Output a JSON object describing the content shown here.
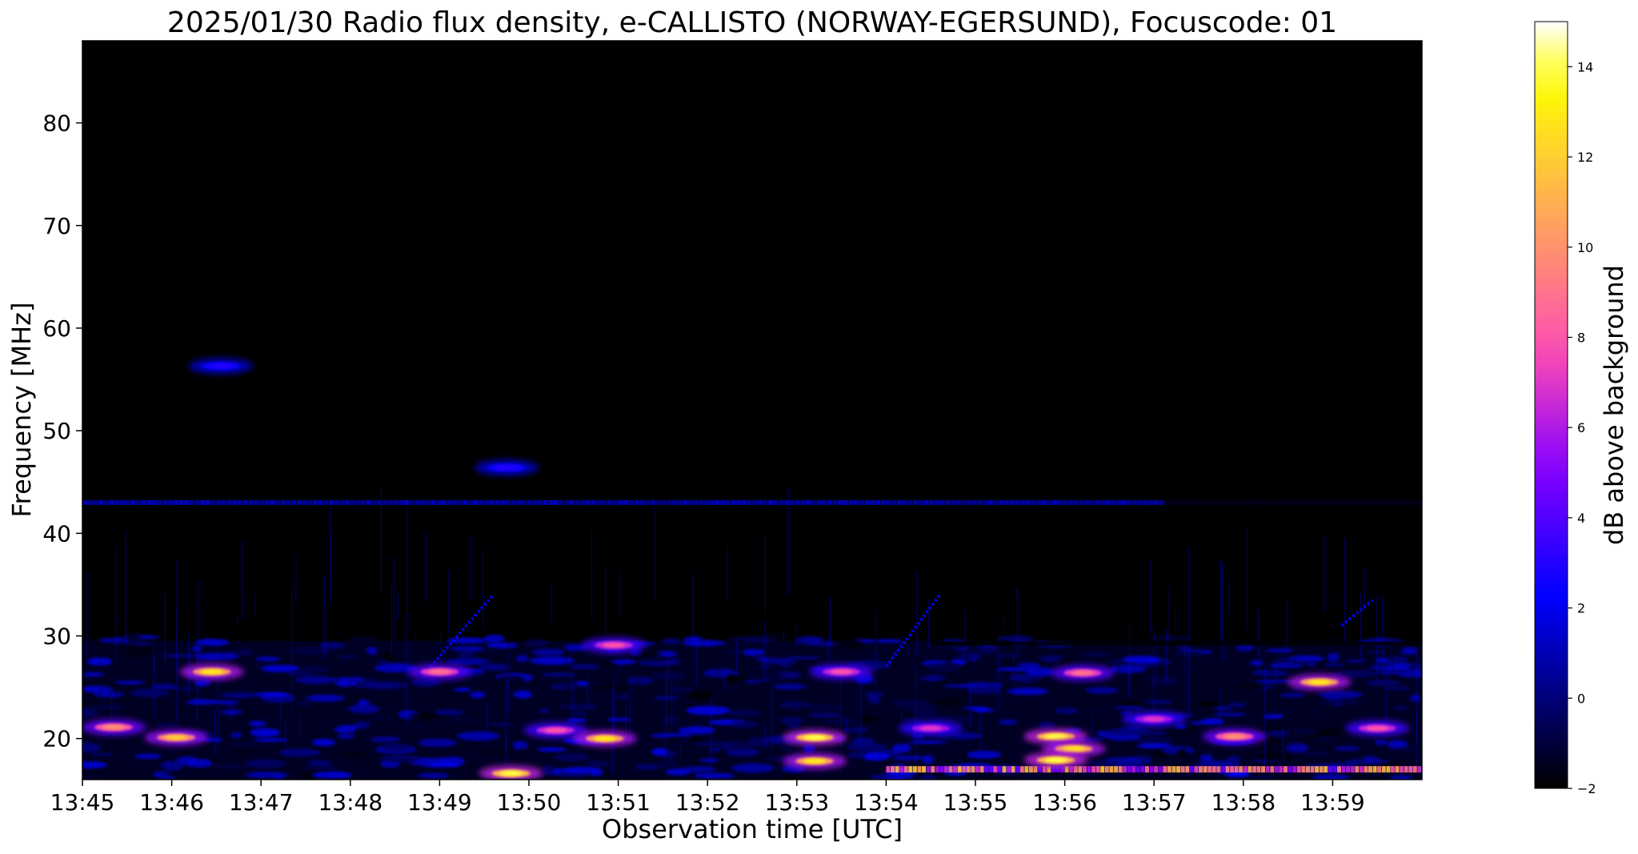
{
  "chart_data": {
    "type": "heatmap",
    "title": "2025/01/30  Radio flux density, e-CALLISTO (NORWAY-EGERSUND), Focuscode: 01",
    "xlabel": "Observation time [UTC]",
    "ylabel": "Frequency [MHz]",
    "colorbar_label": "dB above background",
    "x_ticks": [
      "13:45",
      "13:46",
      "13:47",
      "13:48",
      "13:49",
      "13:50",
      "13:51",
      "13:52",
      "13:53",
      "13:54",
      "13:55",
      "13:56",
      "13:57",
      "13:58",
      "13:59"
    ],
    "x_range_minutes": [
      0,
      15
    ],
    "y_ticks": [
      20,
      30,
      40,
      50,
      60,
      70,
      80
    ],
    "ylim": [
      16,
      88
    ],
    "colorbar_ticks": [
      -2,
      0,
      2,
      4,
      6,
      8,
      10,
      12,
      14
    ],
    "colorbar_range": [
      -2,
      15
    ],
    "colormap": "gnuplot2",
    "background_level_db": 0.3,
    "features": {
      "rfi_band_43mhz": {
        "freq": 43,
        "db": 1.2
      },
      "bright_blobs": [
        {
          "t": 1.45,
          "f": 26.5,
          "db": 13
        },
        {
          "t": 1.05,
          "f": 20.1,
          "db": 12
        },
        {
          "t": 0.35,
          "f": 21.1,
          "db": 10
        },
        {
          "t": 1.55,
          "f": 56.3,
          "db": 3
        },
        {
          "t": 4.0,
          "f": 26.5,
          "db": 9
        },
        {
          "t": 4.75,
          "f": 46.4,
          "db": 3
        },
        {
          "t": 4.8,
          "f": 16.6,
          "db": 14
        },
        {
          "t": 5.3,
          "f": 20.8,
          "db": 8
        },
        {
          "t": 5.85,
          "f": 20.0,
          "db": 13
        },
        {
          "t": 5.95,
          "f": 29.1,
          "db": 8
        },
        {
          "t": 8.2,
          "f": 20.1,
          "db": 14
        },
        {
          "t": 8.2,
          "f": 17.8,
          "db": 13
        },
        {
          "t": 8.5,
          "f": 26.5,
          "db": 8
        },
        {
          "t": 9.5,
          "f": 21.0,
          "db": 7
        },
        {
          "t": 10.9,
          "f": 20.2,
          "db": 14
        },
        {
          "t": 11.1,
          "f": 19.0,
          "db": 13
        },
        {
          "t": 10.9,
          "f": 17.9,
          "db": 14
        },
        {
          "t": 11.2,
          "f": 26.4,
          "db": 9
        },
        {
          "t": 12.0,
          "f": 21.9,
          "db": 7
        },
        {
          "t": 12.9,
          "f": 20.2,
          "db": 10
        },
        {
          "t": 13.85,
          "f": 25.5,
          "db": 13
        },
        {
          "t": 14.5,
          "f": 21.0,
          "db": 8
        }
      ],
      "drift_bursts": [
        {
          "t_start": 3.9,
          "f_start": 27.0,
          "t_end": 4.6,
          "f_end": 34.0
        },
        {
          "t_start": 9.0,
          "f_start": 27.0,
          "t_end": 9.6,
          "f_end": 34.0
        },
        {
          "t_start": 14.1,
          "f_start": 31.0,
          "t_end": 14.45,
          "f_end": 33.5
        }
      ],
      "low_band_line": {
        "freq": 17,
        "t_start": 9.0,
        "t_end": 15.0,
        "db": 12
      }
    }
  }
}
